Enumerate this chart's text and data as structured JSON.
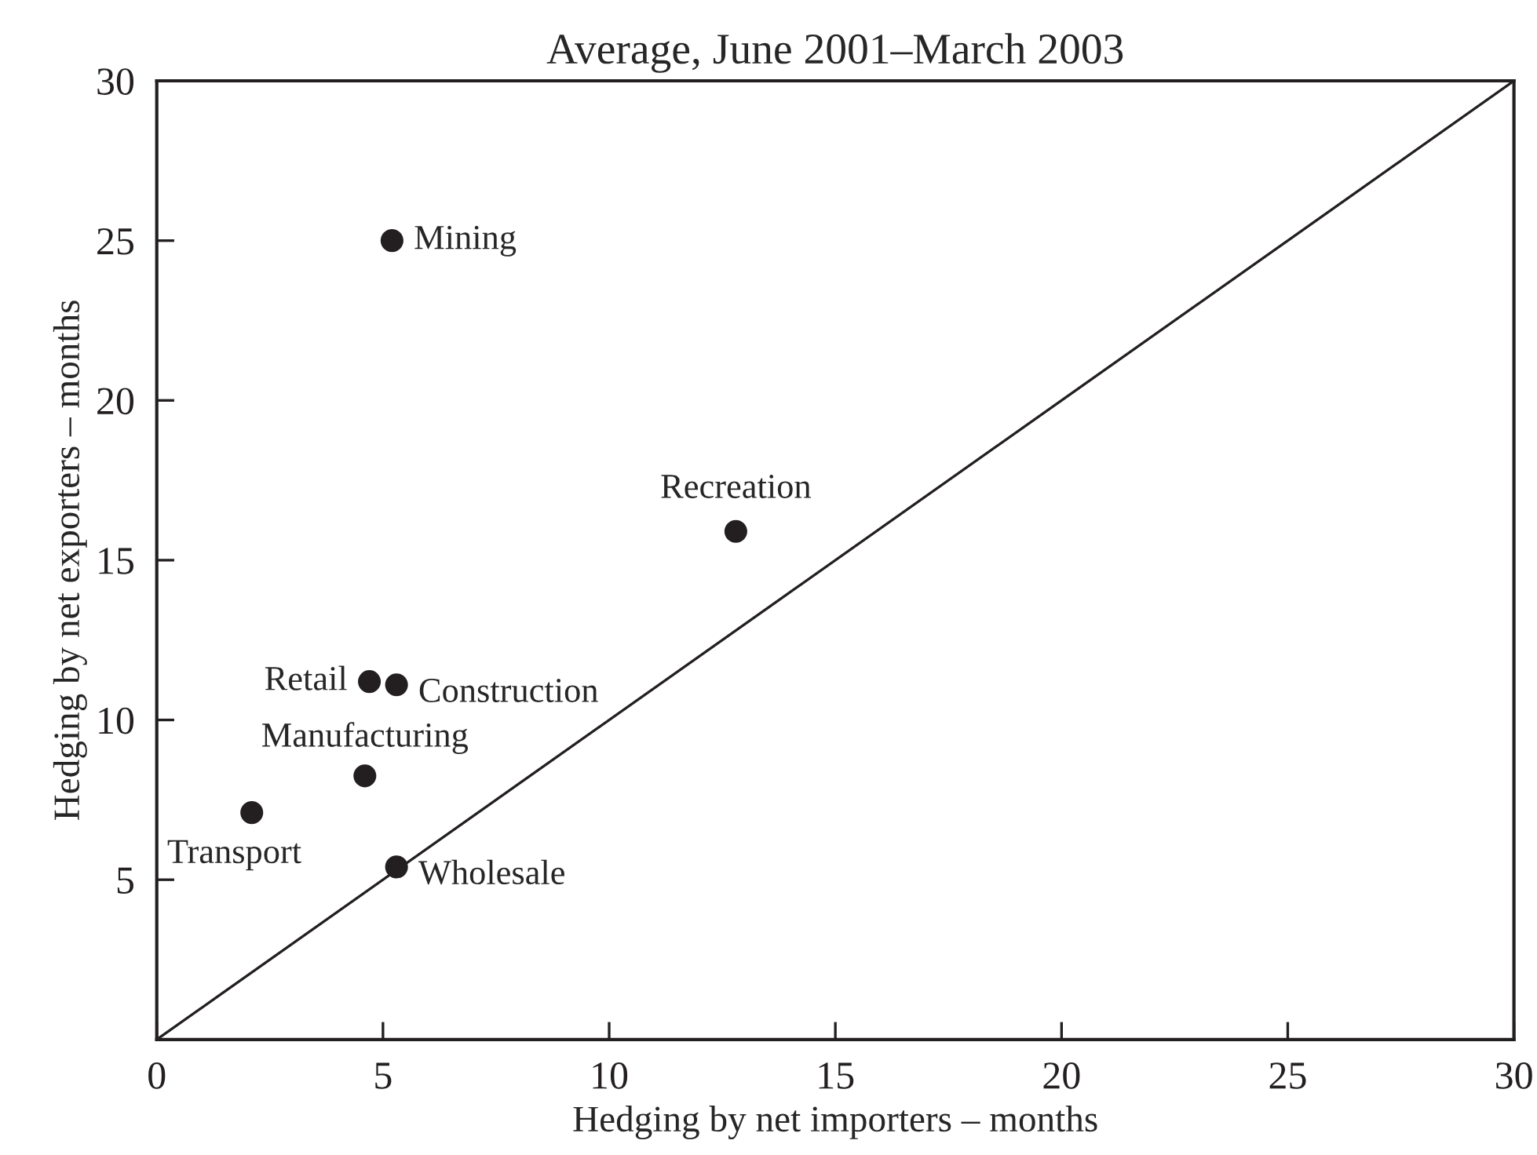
{
  "chart_data": [
    {
      "type": "scatter",
      "title": "Average, June 2001–March 2003",
      "xlabel": "Hedging by net importers – months",
      "ylabel": "Hedging by net exporters – months",
      "xlim": [
        0,
        30
      ],
      "ylim": [
        0,
        30
      ],
      "xticks": [
        0,
        5,
        10,
        15,
        20,
        25,
        30
      ],
      "yticks": [
        5,
        10,
        15,
        20,
        25,
        30
      ],
      "grid": false,
      "legend": false,
      "marker": "circle",
      "series": [
        {
          "color": "#231f20",
          "x": [
            5.2,
            12.8,
            4.7,
            5.3,
            4.6,
            2.1,
            5.3
          ],
          "values": [
            25.0,
            15.9,
            11.2,
            11.1,
            8.25,
            7.1,
            5.4
          ]
        },
        {
          "type": "line",
          "color": "#231f20",
          "x": [
            0,
            30
          ],
          "values": [
            0,
            30
          ],
          "line_style": "solid",
          "marker": "none"
        }
      ],
      "annotations": [
        {
          "text": "Mining",
          "x": 5.2,
          "y": 25.0
        },
        {
          "text": "Recreation",
          "x": 12.8,
          "y": 15.9
        },
        {
          "text": "Retail",
          "x": 4.7,
          "y": 11.2
        },
        {
          "text": "Construction",
          "x": 5.3,
          "y": 11.1
        },
        {
          "text": "Manufacturing",
          "x": 4.6,
          "y": 8.25
        },
        {
          "text": "Transport",
          "x": 2.1,
          "y": 7.1
        },
        {
          "text": "Wholesale",
          "x": 5.3,
          "y": 5.4
        }
      ]
    }
  ]
}
